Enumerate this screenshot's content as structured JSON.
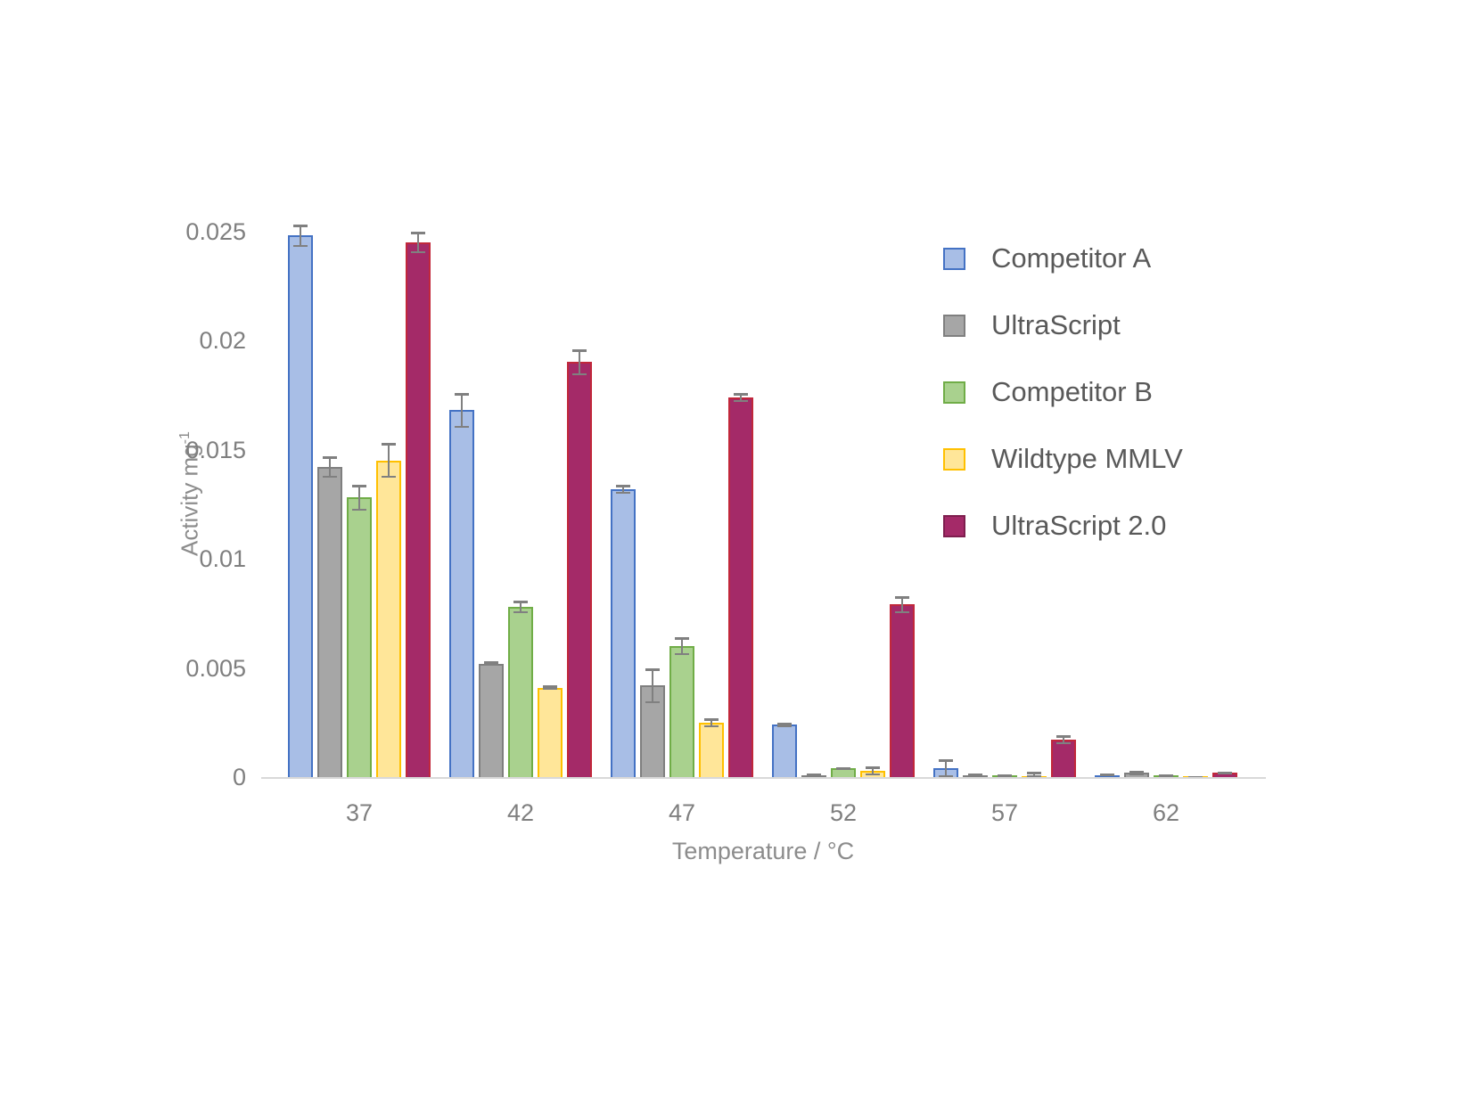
{
  "chart_data": {
    "type": "bar",
    "title": "",
    "xlabel": "Temperature / °C",
    "ylabel": "Activity mg⁻¹",
    "ylabel_base": "Activity mg",
    "ylabel_sup": "-1",
    "categories": [
      "37",
      "42",
      "47",
      "52",
      "57",
      "62"
    ],
    "yticks": [
      0,
      0.005,
      0.01,
      0.015,
      0.02,
      0.025
    ],
    "ytick_labels": [
      "0",
      "0.005",
      "0.01",
      "0.015",
      "0.02",
      "0.025"
    ],
    "ylim": [
      0,
      0.025
    ],
    "grid": false,
    "legend_position": "right",
    "error_bar_color": "#808080",
    "axis_line_color": "#D9D9D9",
    "series": [
      {
        "name": "Competitor A",
        "fill": "#A8BEE6",
        "border": "#4472C4",
        "values": [
          0.0248,
          0.0168,
          0.0132,
          0.0024,
          0.0004,
          0.0001
        ],
        "errors": [
          0.0005,
          0.0008,
          0.0002,
          0.0001,
          0.0004,
          5e-05
        ]
      },
      {
        "name": "UltraScript",
        "fill": "#A6A6A6",
        "border": "#7F7F7F",
        "values": [
          0.0142,
          0.0052,
          0.0042,
          0.0001,
          0.0001,
          0.0002
        ],
        "errors": [
          0.0005,
          0.0001,
          0.0008,
          5e-05,
          5e-05,
          0.0001
        ]
      },
      {
        "name": "Competitor B",
        "fill": "#A9D18E",
        "border": "#70AD47",
        "values": [
          0.0128,
          0.0078,
          0.006,
          0.0004,
          0.0001,
          0.0001
        ],
        "errors": [
          0.0006,
          0.0003,
          0.0004,
          5e-05,
          3e-05,
          3e-05
        ]
      },
      {
        "name": "Wildtype MMLV",
        "fill": "#FFE699",
        "border": "#FFC000",
        "values": [
          0.0145,
          0.0041,
          0.0025,
          0.0003,
          5e-05,
          3e-05
        ],
        "errors": [
          0.0008,
          0.0001,
          0.0002,
          0.0002,
          0.0002,
          2e-05
        ]
      },
      {
        "name": "UltraScript 2.0",
        "fill": "#A42A68",
        "border": "#C1273B",
        "legend_border": "#7E1E4E",
        "values": [
          0.0245,
          0.019,
          0.0174,
          0.0079,
          0.0017,
          0.0002
        ],
        "errors": [
          0.0005,
          0.0006,
          0.0002,
          0.0004,
          0.0002,
          5e-05
        ]
      }
    ]
  }
}
